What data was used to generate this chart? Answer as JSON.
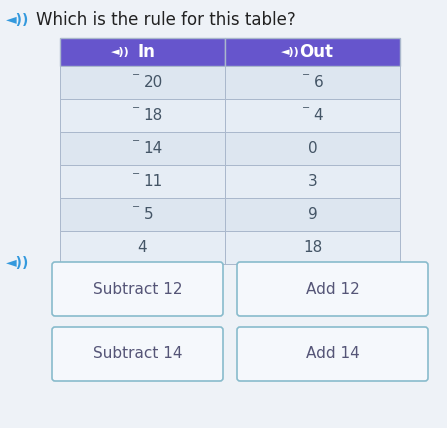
{
  "title": "Which is the rule for this table?",
  "title_fontsize": 12,
  "background_color": "#eef2f7",
  "header_color": "#6655cc",
  "header_text_color": "#ffffff",
  "table_border_color": "#aab8cc",
  "row_bg_light": "#dde6f0",
  "row_bg_mid": "#e6edf5",
  "col_in_label": "In",
  "col_out_label": "Out",
  "in_values": [
    "-20",
    "-18",
    "-14",
    "-11",
    "-5",
    "4"
  ],
  "out_values": [
    "-6",
    "-4",
    "0",
    "3",
    "9",
    "18"
  ],
  "buttons": [
    {
      "text": "Subtract 12",
      "col": 0
    },
    {
      "text": "Add 12",
      "col": 1
    },
    {
      "text": "Subtract 14",
      "col": 0
    },
    {
      "text": "Add 14",
      "col": 1
    }
  ],
  "button_bg": "#f5f8fc",
  "button_border": "#88bbcc",
  "button_text_color": "#555577",
  "button_fontsize": 11,
  "speaker_color": "#3399dd",
  "cell_text_color": "#445566",
  "value_fontsize": 11
}
